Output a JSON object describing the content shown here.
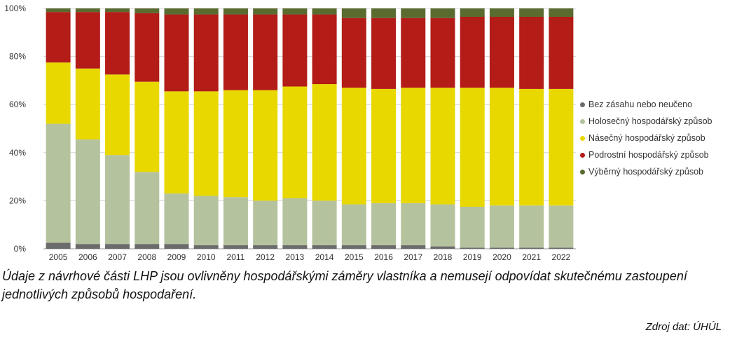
{
  "chart_data": {
    "type": "bar",
    "stacked": true,
    "categories": [
      "2005",
      "2006",
      "2007",
      "2008",
      "2009",
      "2010",
      "2011",
      "2012",
      "2013",
      "2014",
      "2015",
      "2016",
      "2017",
      "2018",
      "2019",
      "2020",
      "2021",
      "2022"
    ],
    "y_ticks": [
      "0%",
      "20%",
      "40%",
      "60%",
      "80%",
      "100%"
    ],
    "ylim": [
      0,
      100
    ],
    "grid": true,
    "legend_position": "right",
    "series": [
      {
        "name": "Bez zásahu nebo neučeno",
        "color": "#6b6b6b",
        "values": [
          2.5,
          2.0,
          2.0,
          2.0,
          2.0,
          1.5,
          1.5,
          1.5,
          1.5,
          1.5,
          1.5,
          1.5,
          1.5,
          1.0,
          0.5,
          0.5,
          0.5,
          0.5
        ]
      },
      {
        "name": "Holosečný hospodářský způsob",
        "color": "#b5c29e",
        "values": [
          49.5,
          43.5,
          37.0,
          30.0,
          21.0,
          20.5,
          20.0,
          18.5,
          19.5,
          18.5,
          17.0,
          17.5,
          17.5,
          17.5,
          17.0,
          17.5,
          17.5,
          17.5
        ]
      },
      {
        "name": "Násečný hospodářský způsob",
        "color": "#e8d800",
        "values": [
          25.5,
          29.5,
          33.5,
          37.5,
          42.5,
          43.5,
          44.5,
          46.0,
          46.5,
          48.5,
          48.5,
          47.5,
          48.0,
          48.5,
          49.5,
          49.0,
          48.5,
          48.5
        ]
      },
      {
        "name": "Podrostní hospodářský způsob",
        "color": "#b31c17",
        "values": [
          21.0,
          23.5,
          26.0,
          28.5,
          32.0,
          32.0,
          31.5,
          31.5,
          30.0,
          29.0,
          29.0,
          29.5,
          29.0,
          29.0,
          29.5,
          29.5,
          30.0,
          30.0
        ]
      },
      {
        "name": "Výběrný hospodářský způsob",
        "color": "#5a6b30",
        "values": [
          1.5,
          1.5,
          1.5,
          2.0,
          2.5,
          2.5,
          2.5,
          2.5,
          2.5,
          2.5,
          4.0,
          4.0,
          4.0,
          4.0,
          3.5,
          3.5,
          3.5,
          3.5
        ]
      }
    ]
  },
  "note": "Údaje z návrhové části LHP jsou ovlivněny hospodářskými záměry vlastníka a nemusejí odpovídat skutečnému zastoupení jednotlivých způsobů hospodaření.",
  "source": "Zdroj dat: ÚHÚL"
}
